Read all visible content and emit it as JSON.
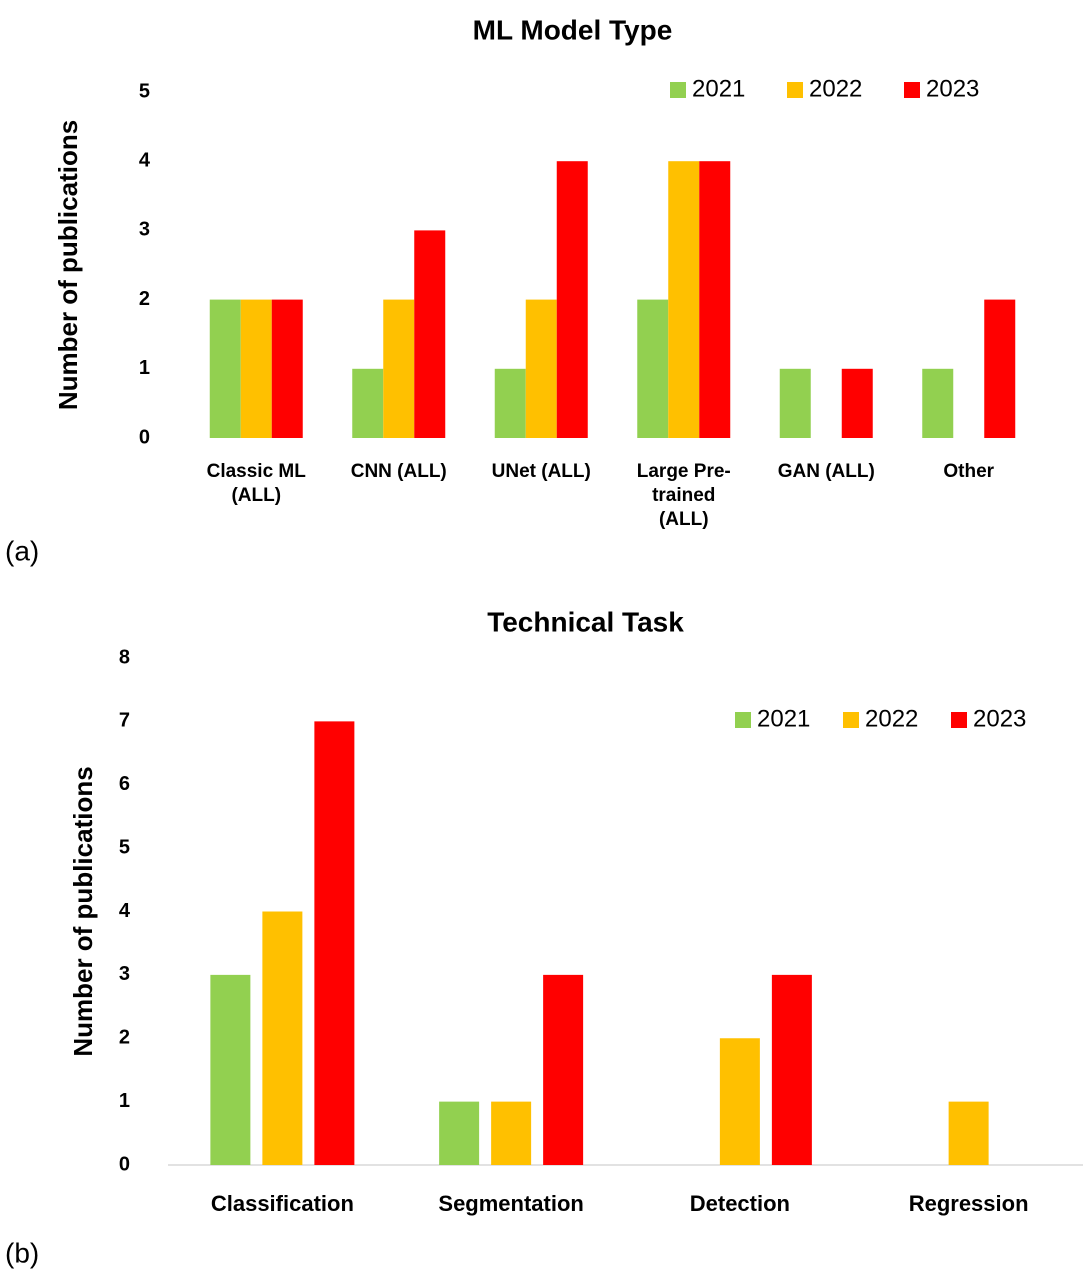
{
  "chart_data": [
    {
      "type": "bar",
      "label": "(a)",
      "title": "ML Model Type",
      "y_label": "Number of publications",
      "categories": [
        "Classic ML (ALL)",
        "CNN (ALL)",
        "UNet (ALL)",
        "Large Pre-trained (ALL)",
        "GAN (ALL)",
        "Other"
      ],
      "series": [
        {
          "name": "2021",
          "color": "#92d050",
          "values": [
            2,
            1,
            1,
            2,
            1,
            1
          ]
        },
        {
          "name": "2022",
          "color": "#ffc000",
          "values": [
            2,
            2,
            2,
            4,
            0,
            0
          ]
        },
        {
          "name": "2023",
          "color": "#ff0000",
          "values": [
            2,
            3,
            4,
            4,
            1,
            2
          ]
        }
      ],
      "ylim": [
        0,
        5
      ],
      "yticks": [
        0,
        1,
        2,
        3,
        4,
        5
      ],
      "grid": false,
      "axis_line": false,
      "legend": "upper right"
    },
    {
      "type": "bar",
      "label": "(b)",
      "title": "Technical Task",
      "y_label": "Number of publications",
      "categories": [
        "Classification",
        "Segmentation",
        "Detection",
        "Regression"
      ],
      "series": [
        {
          "name": "2021",
          "color": "#92d050",
          "values": [
            3,
            1,
            0,
            0
          ]
        },
        {
          "name": "2022",
          "color": "#ffc000",
          "values": [
            4,
            1,
            2,
            1
          ]
        },
        {
          "name": "2023",
          "color": "#ff0000",
          "values": [
            7,
            3,
            3,
            0
          ]
        }
      ],
      "ylim": [
        0,
        8
      ],
      "yticks": [
        0,
        1,
        2,
        3,
        4,
        5,
        6,
        7,
        8
      ],
      "grid": false,
      "axis_line": true,
      "legend": "upper right"
    }
  ]
}
